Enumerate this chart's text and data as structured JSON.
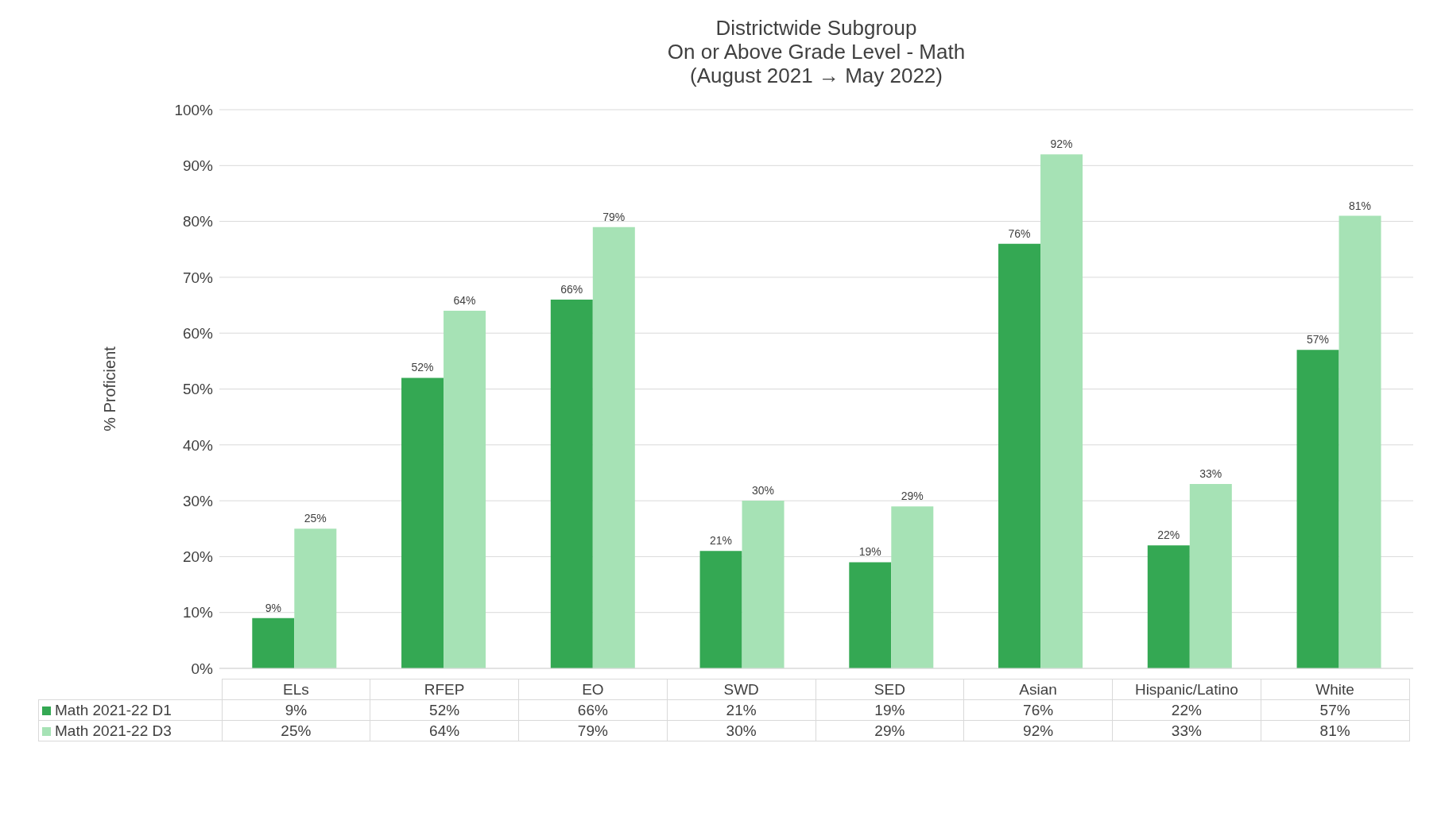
{
  "chart_data": {
    "type": "bar",
    "title": "Districtwide Subgroup\nOn or Above Grade Level - Math\n(August 2021 → May 2022)",
    "ylabel": "% Proficient",
    "categories": [
      "ELs",
      "RFEP",
      "EO",
      "SWD",
      "SED",
      "Asian",
      "Hispanic/Latino",
      "White"
    ],
    "series": [
      {
        "name": "Math 2021-22 D1",
        "color": "#34a853",
        "values": [
          9,
          52,
          66,
          21,
          19,
          76,
          22,
          57
        ],
        "value_labels": [
          "9%",
          "52%",
          "66%",
          "21%",
          "19%",
          "76%",
          "22%",
          "57%"
        ]
      },
      {
        "name": "Math 2021-22 D3",
        "color": "#a6e2b5",
        "values": [
          25,
          64,
          79,
          30,
          29,
          92,
          33,
          81
        ],
        "value_labels": [
          "25%",
          "64%",
          "79%",
          "30%",
          "29%",
          "92%",
          "33%",
          "81%"
        ]
      }
    ],
    "ylim": [
      0,
      100
    ],
    "yticks": [
      {
        "value": 0,
        "label": "0%"
      },
      {
        "value": 10,
        "label": "10%"
      },
      {
        "value": 20,
        "label": "20%"
      },
      {
        "value": 30,
        "label": "30%"
      },
      {
        "value": 40,
        "label": "40%"
      },
      {
        "value": 50,
        "label": "50%"
      },
      {
        "value": 60,
        "label": "60%"
      },
      {
        "value": 70,
        "label": "70%"
      },
      {
        "value": 80,
        "label": "80%"
      },
      {
        "value": 90,
        "label": "90%"
      },
      {
        "value": 100,
        "label": "100%"
      }
    ],
    "grid": "y",
    "legend": "bottom"
  }
}
